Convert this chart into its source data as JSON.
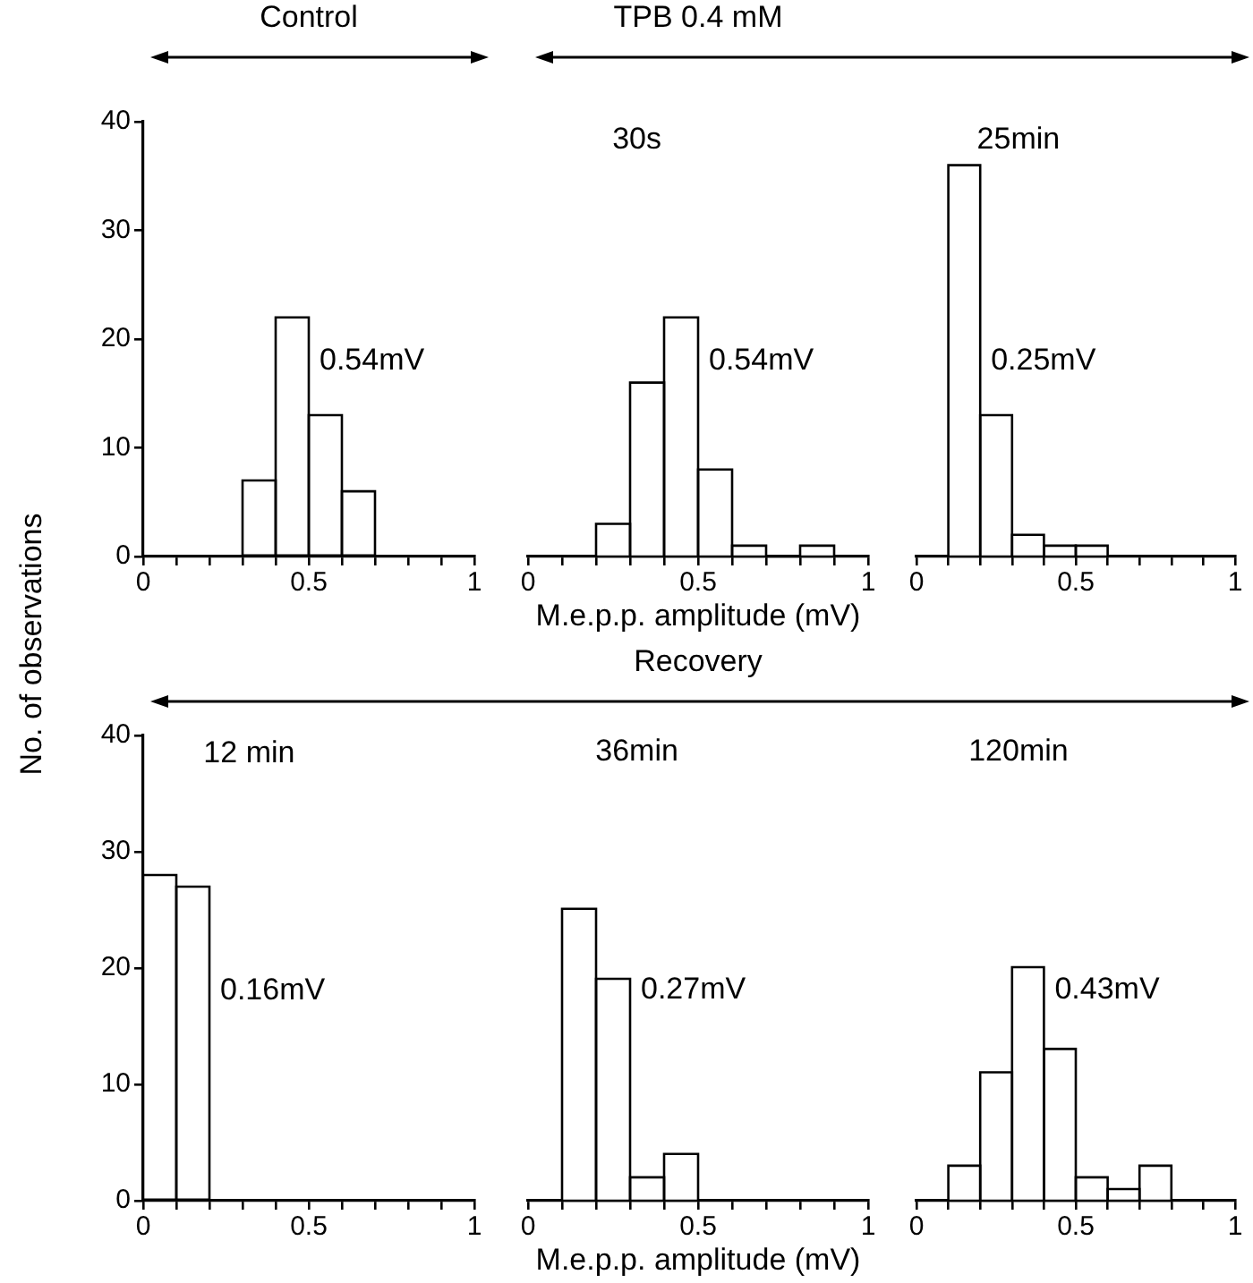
{
  "chart_data": [
    {
      "type": "histogram",
      "subtitle": "Control",
      "ylabel": "No. of observations",
      "bins": [
        0.3,
        0.4,
        0.5,
        0.6,
        0.7
      ],
      "values": [
        7,
        22,
        13,
        6
      ],
      "color": "#ffffff",
      "xlim": [
        0,
        1
      ],
      "ylim": [
        0,
        40
      ],
      "xticks": [
        0,
        {
          "value": 0.1,
          "label": null
        },
        {
          "value": 0.2,
          "label": null
        },
        {
          "value": 0.3,
          "label": null
        },
        {
          "value": 0.4,
          "label": null
        },
        0.5,
        {
          "value": 0.6,
          "label": null
        },
        {
          "value": 0.7,
          "label": null
        },
        {
          "value": 0.8,
          "label": null
        },
        {
          "value": 0.9,
          "label": null
        },
        1
      ],
      "yticks": [
        0,
        10,
        20,
        30,
        40
      ],
      "annotations": [
        "0.54mV"
      ]
    },
    {
      "type": "histogram",
      "title": "30s",
      "subtitle": "TPB 0.4 mM",
      "xlabel": "M.e.p.p. amplitude (mV)",
      "bins": [
        0.2,
        0.3,
        0.4,
        0.5,
        0.6,
        0.7,
        0.8,
        0.9
      ],
      "values": [
        3,
        16,
        22,
        8,
        1,
        0,
        1
      ],
      "color": "#ffffff",
      "xlim": [
        0,
        1
      ],
      "ylim": [
        0,
        40
      ],
      "xticks": [
        0,
        {
          "value": 0.1,
          "label": null
        },
        {
          "value": 0.2,
          "label": null
        },
        {
          "value": 0.3,
          "label": null
        },
        {
          "value": 0.4,
          "label": null
        },
        0.5,
        {
          "value": 0.6,
          "label": null
        },
        {
          "value": 0.7,
          "label": null
        },
        {
          "value": 0.8,
          "label": null
        },
        {
          "value": 0.9,
          "label": null
        },
        1
      ],
      "tick_labels": "x",
      "annotations": [
        "0.54mV"
      ]
    },
    {
      "type": "histogram",
      "title": "25min",
      "bins": [
        0.1,
        0.2,
        0.3,
        0.4,
        0.5,
        0.6
      ],
      "values": [
        36,
        13,
        2,
        1,
        1
      ],
      "color": "#ffffff",
      "xlim": [
        0,
        1
      ],
      "ylim": [
        0,
        40
      ],
      "xticks": [
        0,
        {
          "value": 0.1,
          "label": null
        },
        {
          "value": 0.2,
          "label": null
        },
        {
          "value": 0.3,
          "label": null
        },
        {
          "value": 0.4,
          "label": null
        },
        0.5,
        {
          "value": 0.6,
          "label": null
        },
        {
          "value": 0.7,
          "label": null
        },
        {
          "value": 0.8,
          "label": null
        },
        {
          "value": 0.9,
          "label": null
        },
        1
      ],
      "tick_labels": "x",
      "annotations": [
        "0.25mV"
      ]
    },
    {
      "type": "histogram",
      "title": "12 min",
      "bins": [
        0,
        0.1,
        0.2
      ],
      "values": [
        28,
        27
      ],
      "color": "#ffffff",
      "xlim": [
        0,
        1
      ],
      "ylim": [
        0,
        40
      ],
      "xticks": [
        0,
        {
          "value": 0.1,
          "label": null
        },
        {
          "value": 0.2,
          "label": null
        },
        {
          "value": 0.3,
          "label": null
        },
        {
          "value": 0.4,
          "label": null
        },
        0.5,
        {
          "value": 0.6,
          "label": null
        },
        {
          "value": 0.7,
          "label": null
        },
        {
          "value": 0.8,
          "label": null
        },
        {
          "value": 0.9,
          "label": null
        },
        1
      ],
      "yticks": [
        0,
        10,
        20,
        30,
        40
      ],
      "annotations": [
        "0.16mV"
      ]
    },
    {
      "type": "histogram",
      "title": "36min",
      "subtitle": "Recovery",
      "xlabel": "M.e.p.p. amplitude (mV)",
      "bins": [
        0.1,
        0.2,
        0.3,
        0.4,
        0.5
      ],
      "values": [
        25,
        19,
        2,
        4
      ],
      "color": "#ffffff",
      "xlim": [
        0,
        1
      ],
      "ylim": [
        0,
        40
      ],
      "xticks": [
        0,
        {
          "value": 0.1,
          "label": null
        },
        {
          "value": 0.2,
          "label": null
        },
        {
          "value": 0.3,
          "label": null
        },
        {
          "value": 0.4,
          "label": null
        },
        0.5,
        {
          "value": 0.6,
          "label": null
        },
        {
          "value": 0.7,
          "label": null
        },
        {
          "value": 0.8,
          "label": null
        },
        {
          "value": 0.9,
          "label": null
        },
        1
      ],
      "tick_labels": "x",
      "annotations": [
        "0.27mV"
      ]
    },
    {
      "type": "histogram",
      "title": "120min",
      "bins": [
        0.1,
        0.2,
        0.3,
        0.4,
        0.5,
        0.6,
        0.7,
        0.8
      ],
      "values": [
        3,
        11,
        20,
        13,
        2,
        1,
        3
      ],
      "color": "#ffffff",
      "xlim": [
        0,
        1
      ],
      "ylim": [
        0,
        40
      ],
      "xticks": [
        0,
        {
          "value": 0.1,
          "label": null
        },
        {
          "value": 0.2,
          "label": null
        },
        {
          "value": 0.3,
          "label": null
        },
        {
          "value": 0.4,
          "label": null
        },
        0.5,
        {
          "value": 0.6,
          "label": null
        },
        {
          "value": 0.7,
          "label": null
        },
        {
          "value": 0.8,
          "label": null
        },
        {
          "value": 0.9,
          "label": null
        },
        1
      ],
      "tick_labels": "x",
      "annotations": [
        "0.43mV"
      ]
    }
  ]
}
